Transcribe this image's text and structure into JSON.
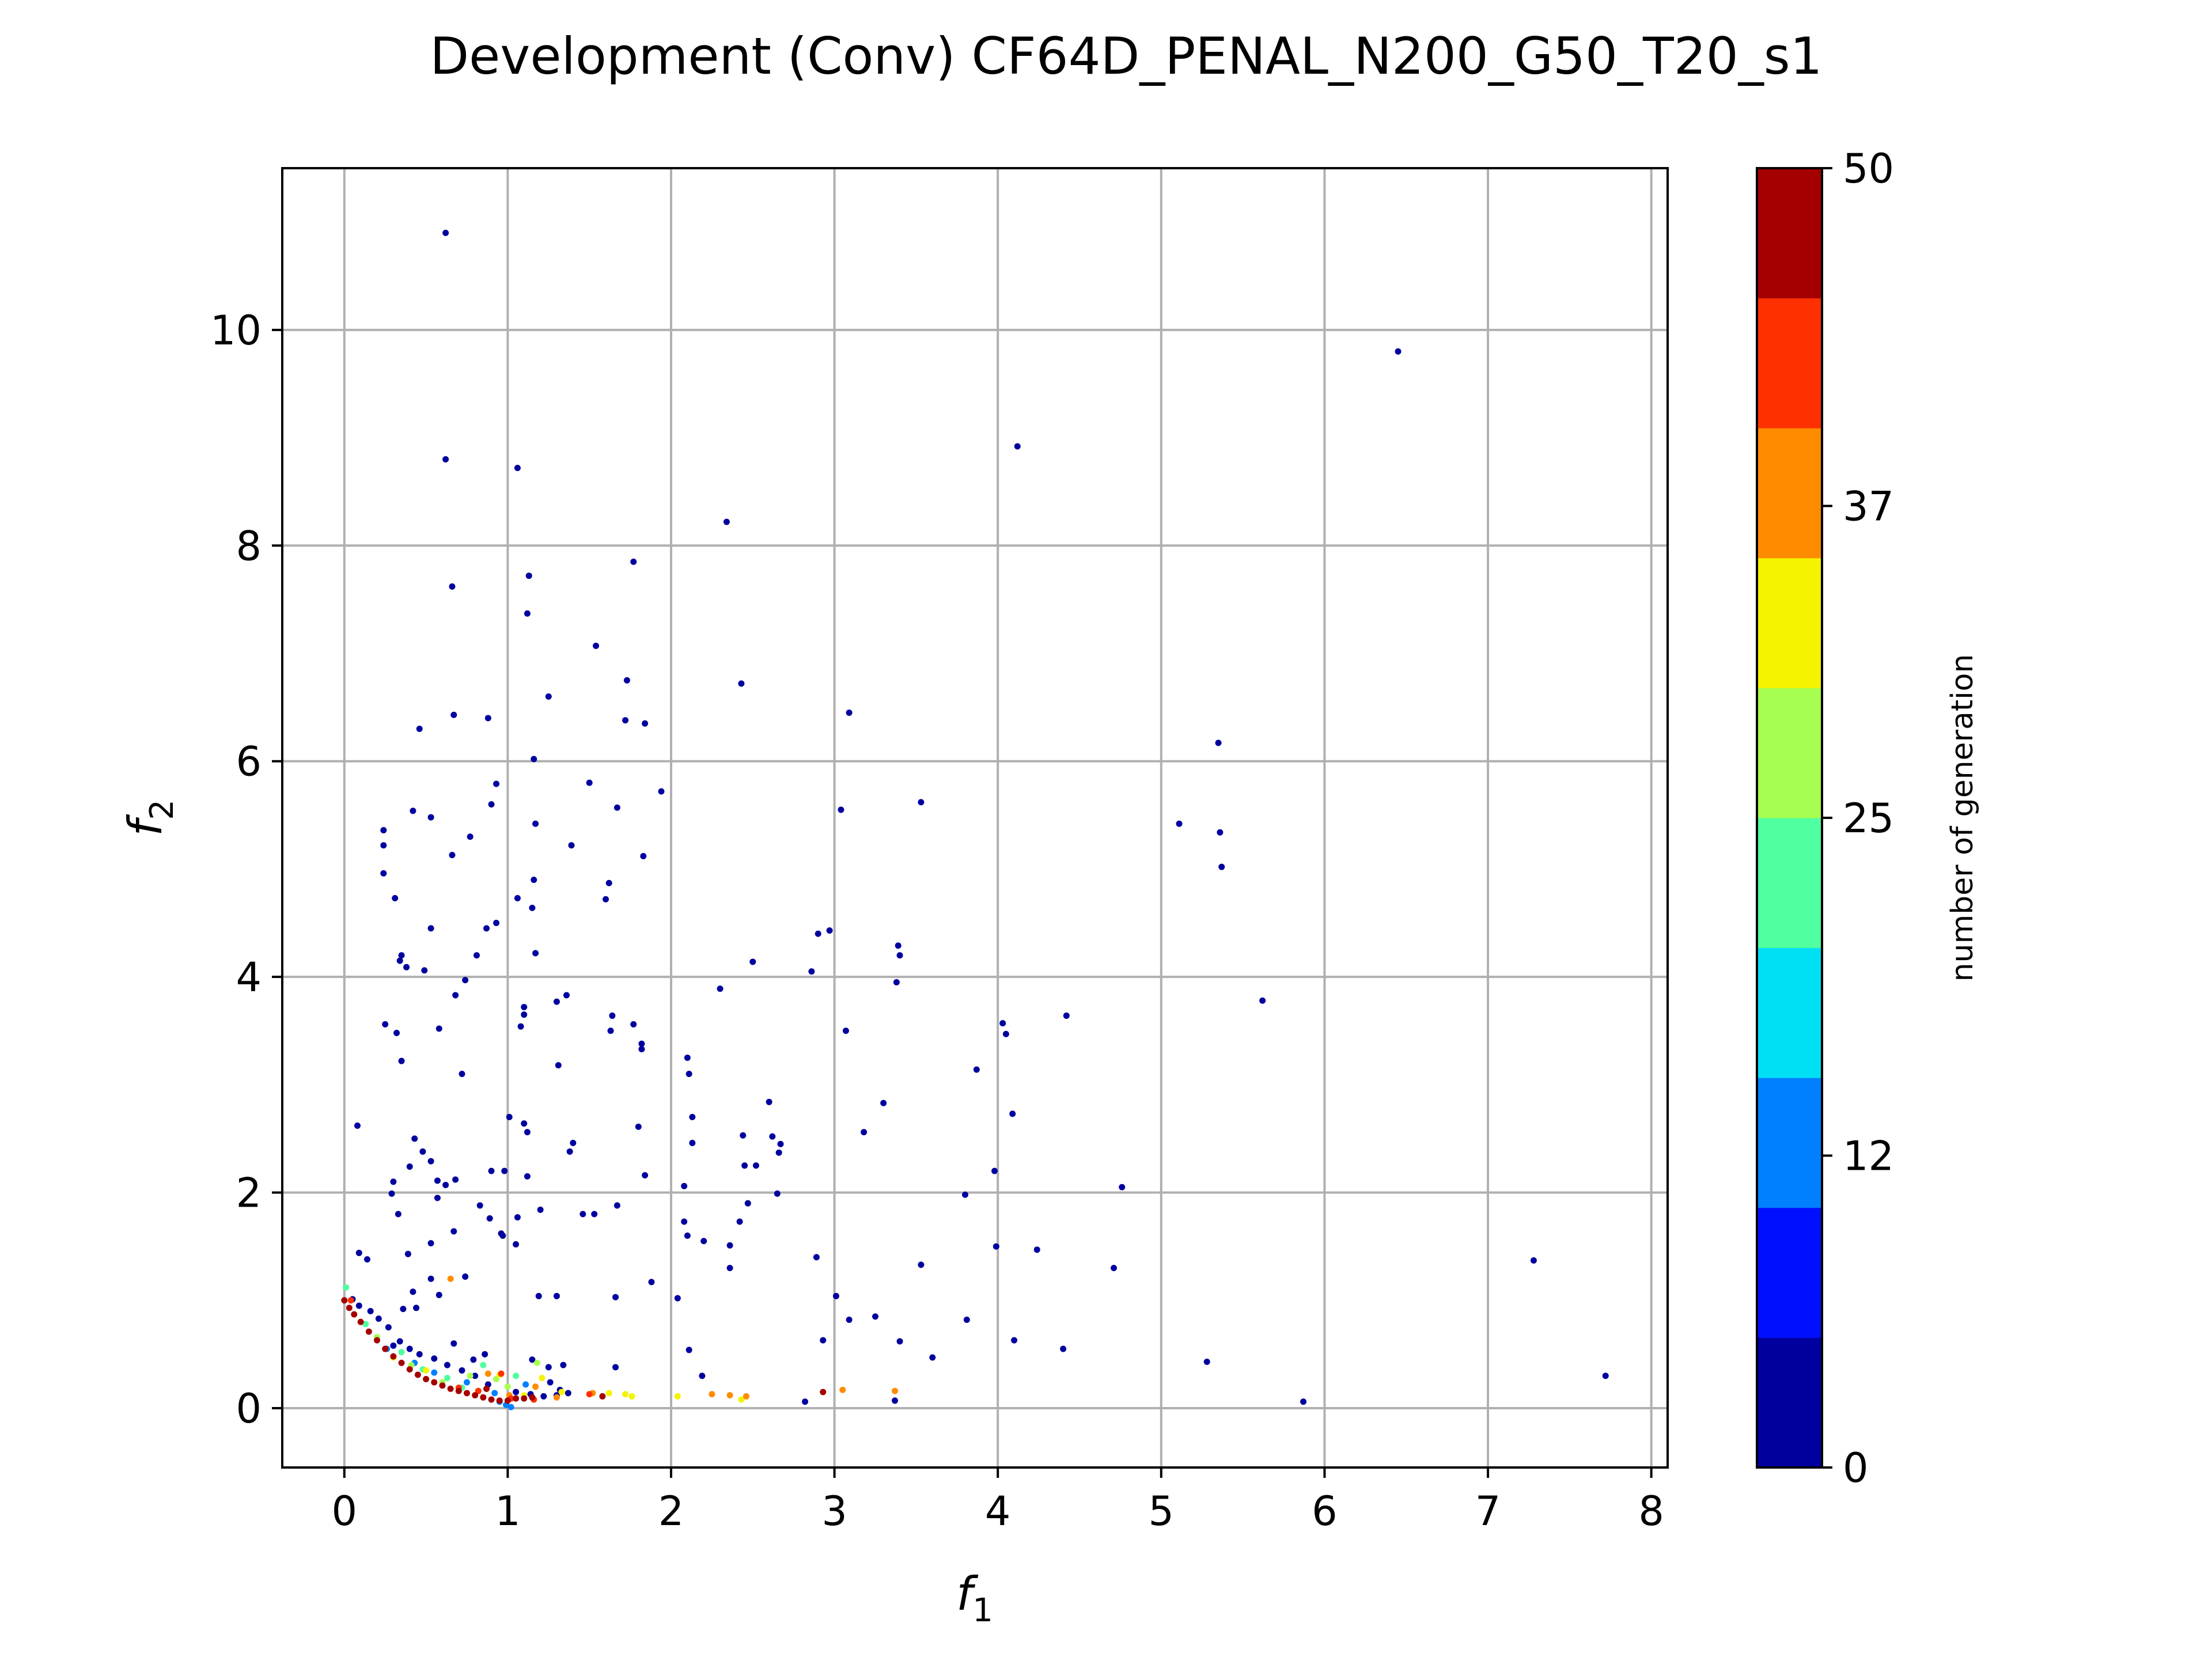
{
  "chart_data": {
    "type": "scatter",
    "title": "Development (Conv) CF64D_PENAL_N200_G50_T20_s1",
    "xlabel": "f",
    "xlabel_sub": "1",
    "ylabel": "f",
    "ylabel_sub": "2",
    "xlim": [
      -0.38,
      8.1
    ],
    "ylim": [
      -0.55,
      11.5
    ],
    "xticks": [
      0,
      1,
      2,
      3,
      4,
      5,
      6,
      7,
      8
    ],
    "yticks": [
      0,
      2,
      4,
      6,
      8,
      10
    ],
    "grid": true,
    "colormap": "jet",
    "colorbar": {
      "label": "number of generation",
      "range": [
        0,
        50
      ],
      "ticks": [
        0,
        12,
        25,
        37,
        50
      ],
      "colors": [
        "#00009f",
        "#0010ff",
        "#0080ff",
        "#00e0f4",
        "#50ff9f",
        "#a6ff50",
        "#f4f400",
        "#ff8c00",
        "#ff3000",
        "#a50000"
      ]
    },
    "series": [
      {
        "generation": 0,
        "color": "#00009f",
        "points": [
          [
            0.62,
            10.9
          ],
          [
            6.45,
            9.8
          ],
          [
            0.62,
            8.8
          ],
          [
            1.06,
            8.72
          ],
          [
            4.12,
            8.92
          ],
          [
            2.34,
            8.22
          ],
          [
            0.66,
            7.62
          ],
          [
            1.13,
            7.72
          ],
          [
            1.77,
            7.85
          ],
          [
            1.12,
            7.37
          ],
          [
            1.54,
            7.07
          ],
          [
            1.73,
            6.75
          ],
          [
            2.43,
            6.72
          ],
          [
            1.25,
            6.6
          ],
          [
            0.67,
            6.43
          ],
          [
            0.88,
            6.4
          ],
          [
            1.72,
            6.38
          ],
          [
            1.84,
            6.35
          ],
          [
            0.46,
            6.3
          ],
          [
            3.09,
            6.45
          ],
          [
            5.35,
            6.17
          ],
          [
            1.16,
            6.02
          ],
          [
            0.93,
            5.79
          ],
          [
            1.5,
            5.8
          ],
          [
            1.94,
            5.72
          ],
          [
            0.9,
            5.6
          ],
          [
            1.67,
            5.57
          ],
          [
            3.53,
            5.62
          ],
          [
            3.04,
            5.55
          ],
          [
            0.42,
            5.54
          ],
          [
            0.53,
            5.48
          ],
          [
            0.24,
            5.36
          ],
          [
            1.17,
            5.42
          ],
          [
            5.11,
            5.42
          ],
          [
            0.24,
            5.22
          ],
          [
            0.66,
            5.13
          ],
          [
            0.77,
            5.3
          ],
          [
            1.83,
            5.12
          ],
          [
            5.36,
            5.34
          ],
          [
            1.39,
            5.22
          ],
          [
            0.24,
            4.96
          ],
          [
            5.37,
            5.02
          ],
          [
            1.16,
            4.9
          ],
          [
            1.62,
            4.87
          ],
          [
            0.31,
            4.73
          ],
          [
            1.06,
            4.73
          ],
          [
            1.6,
            4.72
          ],
          [
            1.15,
            4.64
          ],
          [
            0.93,
            4.5
          ],
          [
            0.87,
            4.45
          ],
          [
            0.53,
            4.45
          ],
          [
            2.9,
            4.4
          ],
          [
            2.97,
            4.43
          ],
          [
            3.39,
            4.29
          ],
          [
            1.17,
            4.22
          ],
          [
            0.81,
            4.2
          ],
          [
            3.4,
            4.2
          ],
          [
            2.5,
            4.14
          ],
          [
            0.34,
            4.15
          ],
          [
            0.35,
            4.2
          ],
          [
            0.49,
            4.06
          ],
          [
            0.38,
            4.09
          ],
          [
            0.74,
            3.97
          ],
          [
            2.86,
            4.05
          ],
          [
            3.38,
            3.95
          ],
          [
            2.3,
            3.89
          ],
          [
            0.68,
            3.83
          ],
          [
            1.36,
            3.83
          ],
          [
            1.3,
            3.77
          ],
          [
            5.62,
            3.78
          ],
          [
            1.1,
            3.72
          ],
          [
            1.1,
            3.65
          ],
          [
            4.42,
            3.64
          ],
          [
            1.64,
            3.64
          ],
          [
            1.77,
            3.56
          ],
          [
            4.03,
            3.57
          ],
          [
            0.25,
            3.56
          ],
          [
            0.58,
            3.52
          ],
          [
            1.63,
            3.5
          ],
          [
            1.08,
            3.54
          ],
          [
            3.07,
            3.5
          ],
          [
            4.05,
            3.47
          ],
          [
            0.32,
            3.48
          ],
          [
            1.82,
            3.38
          ],
          [
            1.82,
            3.33
          ],
          [
            2.1,
            3.25
          ],
          [
            1.31,
            3.18
          ],
          [
            0.35,
            3.22
          ],
          [
            2.11,
            3.1
          ],
          [
            3.87,
            3.14
          ],
          [
            0.72,
            3.1
          ],
          [
            3.3,
            2.83
          ],
          [
            2.6,
            2.84
          ],
          [
            4.09,
            2.73
          ],
          [
            1.01,
            2.7
          ],
          [
            2.13,
            2.7
          ],
          [
            1.1,
            2.64
          ],
          [
            1.8,
            2.61
          ],
          [
            0.08,
            2.62
          ],
          [
            1.12,
            2.56
          ],
          [
            3.18,
            2.56
          ],
          [
            2.44,
            2.53
          ],
          [
            2.62,
            2.52
          ],
          [
            2.13,
            2.46
          ],
          [
            1.4,
            2.46
          ],
          [
            2.67,
            2.45
          ],
          [
            0.43,
            2.5
          ],
          [
            1.38,
            2.38
          ],
          [
            0.48,
            2.38
          ],
          [
            2.66,
            2.37
          ],
          [
            0.53,
            2.29
          ],
          [
            2.52,
            2.25
          ],
          [
            2.45,
            2.25
          ],
          [
            0.4,
            2.24
          ],
          [
            0.9,
            2.2
          ],
          [
            0.98,
            2.2
          ],
          [
            1.84,
            2.16
          ],
          [
            3.98,
            2.2
          ],
          [
            0.3,
            2.1
          ],
          [
            0.57,
            2.11
          ],
          [
            0.62,
            2.07
          ],
          [
            0.68,
            2.12
          ],
          [
            2.08,
            2.06
          ],
          [
            1.12,
            2.15
          ],
          [
            4.76,
            2.05
          ],
          [
            0.29,
            1.99
          ],
          [
            3.8,
            1.98
          ],
          [
            2.65,
            1.99
          ],
          [
            0.57,
            1.95
          ],
          [
            0.83,
            1.88
          ],
          [
            2.47,
            1.9
          ],
          [
            1.53,
            1.8
          ],
          [
            1.46,
            1.8
          ],
          [
            1.2,
            1.84
          ],
          [
            1.67,
            1.88
          ],
          [
            2.42,
            1.73
          ],
          [
            1.06,
            1.77
          ],
          [
            2.08,
            1.73
          ],
          [
            0.89,
            1.76
          ],
          [
            0.33,
            1.8
          ],
          [
            0.96,
            1.62
          ],
          [
            0.67,
            1.64
          ],
          [
            0.97,
            1.6
          ],
          [
            2.1,
            1.6
          ],
          [
            2.36,
            1.51
          ],
          [
            0.53,
            1.53
          ],
          [
            2.2,
            1.55
          ],
          [
            3.99,
            1.5
          ],
          [
            4.24,
            1.47
          ],
          [
            0.39,
            1.43
          ],
          [
            0.09,
            1.44
          ],
          [
            0.14,
            1.38
          ],
          [
            1.05,
            1.52
          ],
          [
            2.89,
            1.4
          ],
          [
            2.36,
            1.3
          ],
          [
            4.71,
            1.3
          ],
          [
            3.53,
            1.33
          ],
          [
            7.28,
            1.37
          ],
          [
            1.88,
            1.17
          ],
          [
            0.53,
            1.2
          ],
          [
            0.74,
            1.22
          ],
          [
            0.58,
            1.05
          ],
          [
            0.42,
            1.08
          ],
          [
            1.19,
            1.04
          ],
          [
            1.3,
            1.04
          ],
          [
            1.66,
            1.03
          ],
          [
            3.01,
            1.04
          ],
          [
            2.04,
            1.02
          ],
          [
            3.09,
            0.82
          ],
          [
            3.25,
            0.85
          ],
          [
            3.81,
            0.82
          ],
          [
            0.44,
            0.93
          ],
          [
            0.36,
            0.92
          ],
          [
            2.93,
            0.63
          ],
          [
            3.4,
            0.62
          ],
          [
            4.1,
            0.63
          ],
          [
            4.4,
            0.55
          ],
          [
            2.11,
            0.54
          ],
          [
            3.6,
            0.47
          ],
          [
            1.66,
            0.38
          ],
          [
            5.28,
            0.43
          ],
          [
            2.19,
            0.3
          ],
          [
            7.72,
            0.3
          ],
          [
            5.87,
            0.06
          ],
          [
            2.82,
            0.06
          ],
          [
            3.37,
            0.07
          ],
          [
            1.32,
            0.17
          ],
          [
            1.26,
            0.24
          ],
          [
            0.21,
            0.83
          ],
          [
            0.27,
            0.75
          ],
          [
            0.34,
            0.62
          ],
          [
            0.4,
            0.55
          ],
          [
            0.55,
            0.46
          ],
          [
            0.63,
            0.4
          ],
          [
            0.72,
            0.35
          ],
          [
            0.8,
            0.3
          ],
          [
            0.88,
            0.22
          ],
          [
            1.05,
            0.15
          ],
          [
            1.14,
            0.13
          ],
          [
            1.22,
            0.11
          ],
          [
            1.3,
            0.12
          ],
          [
            1.37,
            0.14
          ],
          [
            0.09,
            0.95
          ],
          [
            0.16,
            0.9
          ],
          [
            0.05,
            1.01
          ],
          [
            0.3,
            0.58
          ],
          [
            0.46,
            0.5
          ],
          [
            0.67,
            0.6
          ],
          [
            0.86,
            0.5
          ],
          [
            1.15,
            0.45
          ],
          [
            1.25,
            0.38
          ],
          [
            1.34,
            0.4
          ],
          [
            0.79,
            0.45
          ]
        ]
      },
      {
        "generation": 10,
        "color": "#0080ff",
        "points": [
          [
            0.99,
            0.03
          ],
          [
            0.95,
            0.06
          ],
          [
            1.02,
            0.01
          ],
          [
            0.26,
            0.55
          ],
          [
            0.43,
            0.42
          ],
          [
            0.75,
            0.24
          ],
          [
            0.92,
            0.14
          ],
          [
            1.11,
            0.22
          ],
          [
            0.55,
            0.33
          ]
        ]
      },
      {
        "generation": 20,
        "color": "#50ff9f",
        "points": [
          [
            0.01,
            1.12
          ],
          [
            0.13,
            0.78
          ],
          [
            0.35,
            0.52
          ],
          [
            0.63,
            0.28
          ],
          [
            0.85,
            0.4
          ],
          [
            1.05,
            0.3
          ],
          [
            0.48,
            0.36
          ],
          [
            0.72,
            0.19
          ]
        ]
      },
      {
        "generation": 28,
        "color": "#a6ff50",
        "points": [
          [
            0.2,
            0.66
          ],
          [
            0.41,
            0.4
          ],
          [
            0.77,
            0.3
          ],
          [
            0.93,
            0.27
          ],
          [
            1.18,
            0.42
          ],
          [
            0.6,
            0.24
          ],
          [
            1.0,
            0.2
          ]
        ]
      },
      {
        "generation": 33,
        "color": "#f4f400",
        "points": [
          [
            0.3,
            0.47
          ],
          [
            0.5,
            0.35
          ],
          [
            0.82,
            0.16
          ],
          [
            1.1,
            0.12
          ],
          [
            1.33,
            0.15
          ],
          [
            1.62,
            0.14
          ],
          [
            1.72,
            0.13
          ],
          [
            1.76,
            0.11
          ],
          [
            2.04,
            0.11
          ],
          [
            2.43,
            0.08
          ],
          [
            0.95,
            0.31
          ],
          [
            1.21,
            0.28
          ]
        ]
      },
      {
        "generation": 38,
        "color": "#ff8c00",
        "points": [
          [
            0.65,
            1.2
          ],
          [
            0.88,
            0.32
          ],
          [
            1.3,
            0.1
          ],
          [
            1.52,
            0.14
          ],
          [
            2.25,
            0.13
          ],
          [
            2.36,
            0.12
          ],
          [
            2.46,
            0.11
          ],
          [
            3.05,
            0.17
          ],
          [
            3.37,
            0.16
          ],
          [
            1.01,
            0.12
          ],
          [
            1.17,
            0.2
          ]
        ]
      },
      {
        "generation": 45,
        "color": "#ff3000",
        "points": [
          [
            0.04,
            1.0
          ],
          [
            0.82,
            0.16
          ],
          [
            0.96,
            0.32
          ],
          [
            1.16,
            0.08
          ],
          [
            1.5,
            0.13
          ],
          [
            0.7,
            0.19
          ],
          [
            1.02,
            0.09
          ]
        ]
      },
      {
        "generation": 50,
        "color": "#a50000",
        "points": [
          [
            0.0,
            1.0
          ],
          [
            0.03,
            0.93
          ],
          [
            0.06,
            0.87
          ],
          [
            0.1,
            0.8
          ],
          [
            0.15,
            0.71
          ],
          [
            0.2,
            0.63
          ],
          [
            0.25,
            0.55
          ],
          [
            0.3,
            0.48
          ],
          [
            0.35,
            0.42
          ],
          [
            0.4,
            0.36
          ],
          [
            0.45,
            0.31
          ],
          [
            0.5,
            0.27
          ],
          [
            0.55,
            0.24
          ],
          [
            0.6,
            0.21
          ],
          [
            0.65,
            0.18
          ],
          [
            0.7,
            0.16
          ],
          [
            0.75,
            0.14
          ],
          [
            0.8,
            0.12
          ],
          [
            0.85,
            0.1
          ],
          [
            0.9,
            0.08
          ],
          [
            0.95,
            0.07
          ],
          [
            1.0,
            0.07
          ],
          [
            1.05,
            0.09
          ],
          [
            1.1,
            0.09
          ],
          [
            1.15,
            0.1
          ],
          [
            2.93,
            0.15
          ],
          [
            1.58,
            0.11
          ],
          [
            0.87,
            0.18
          ]
        ]
      }
    ]
  }
}
